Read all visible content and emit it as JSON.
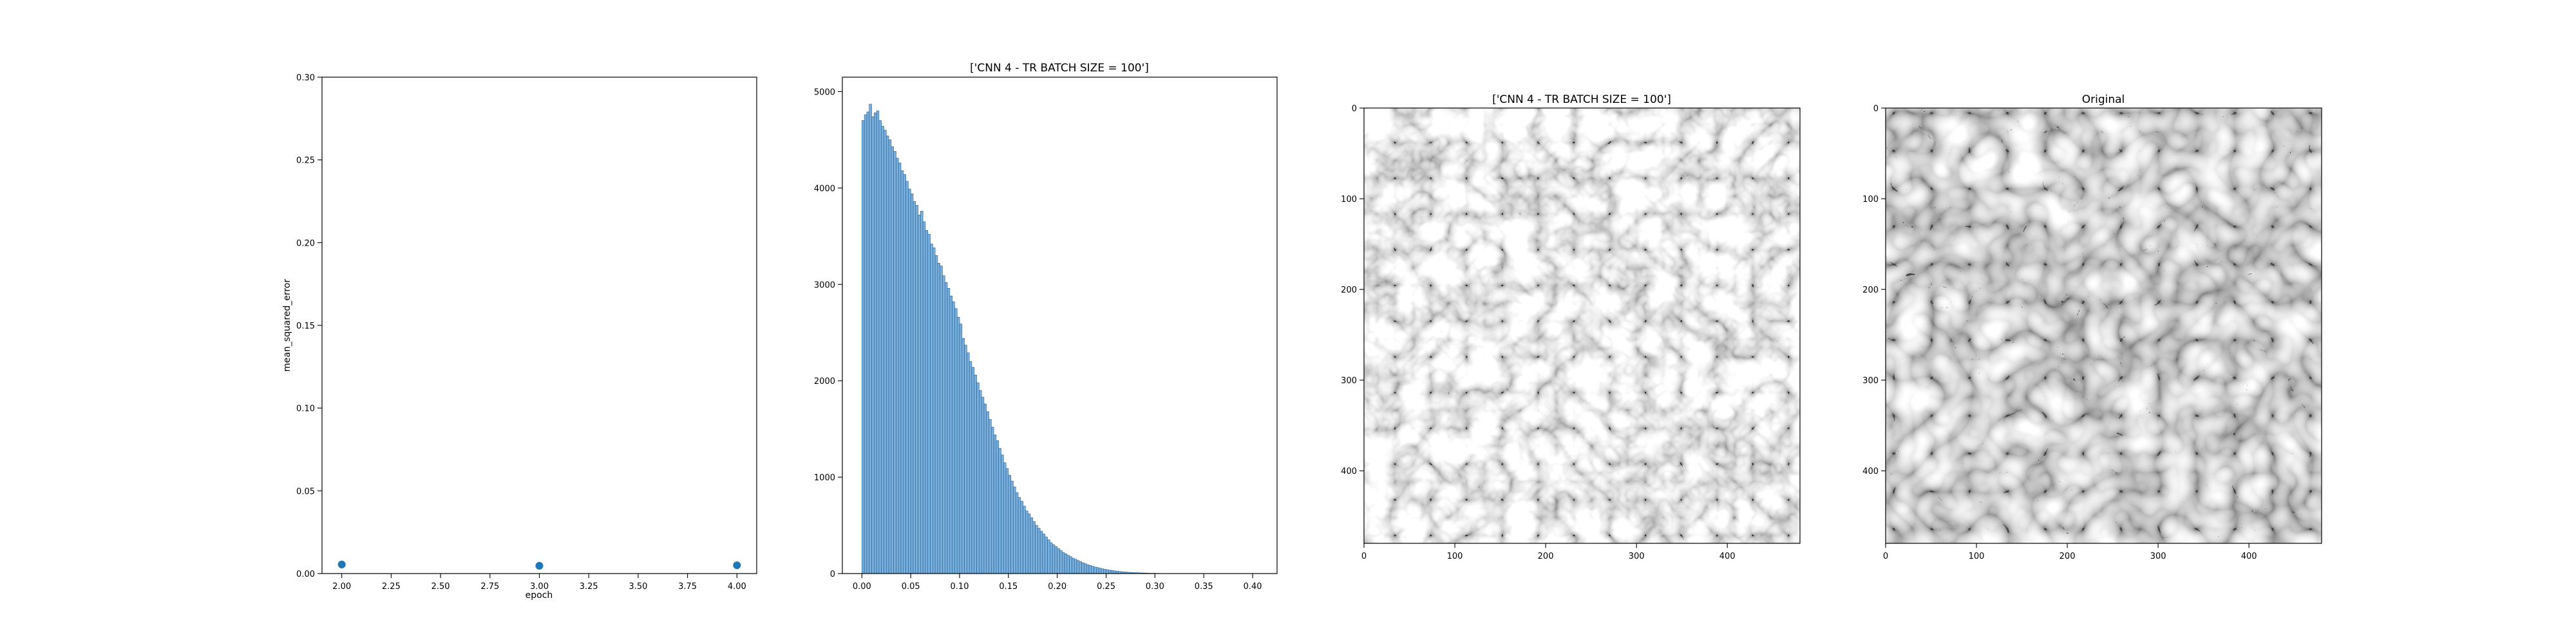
{
  "chart_data": [
    {
      "type": "scatter",
      "title": "",
      "xlabel": "epoch",
      "ylabel": "mean_squared_error",
      "xlim": [
        1.9,
        4.1
      ],
      "ylim": [
        0,
        0.3
      ],
      "xticks": [
        "2.00",
        "2.25",
        "2.50",
        "2.75",
        "3.00",
        "3.25",
        "3.50",
        "3.75",
        "4.00"
      ],
      "yticks": [
        "0.00",
        "0.05",
        "0.10",
        "0.15",
        "0.20",
        "0.25",
        "0.30"
      ],
      "color": "#1f77b4",
      "points": [
        {
          "x": 2.0,
          "y": 0.0055
        },
        {
          "x": 3.0,
          "y": 0.0047
        },
        {
          "x": 4.0,
          "y": 0.005
        }
      ]
    },
    {
      "type": "bar",
      "title": "['CNN 4 - TR BATCH SIZE = 100']",
      "xlabel": "",
      "ylabel": "",
      "xlim": [
        -0.02,
        0.425
      ],
      "ylim": [
        0,
        5150
      ],
      "xticks": [
        "0.00",
        "0.05",
        "0.10",
        "0.15",
        "0.20",
        "0.25",
        "0.30",
        "0.35",
        "0.40"
      ],
      "yticks": [
        "0",
        "1000",
        "2000",
        "3000",
        "4000",
        "5000"
      ],
      "color": "#7aaedb",
      "edge_color": "#1f5f94",
      "bin_width": 0.0025,
      "counts": [
        4700,
        4760,
        4790,
        4870,
        4740,
        4780,
        4800,
        4700,
        4640,
        4600,
        4540,
        4500,
        4430,
        4380,
        4310,
        4260,
        4180,
        4140,
        4070,
        3990,
        3940,
        3860,
        3820,
        3720,
        3760,
        3650,
        3560,
        3520,
        3420,
        3380,
        3300,
        3220,
        3190,
        3090,
        3020,
        2960,
        2880,
        2820,
        2750,
        2660,
        2590,
        2440,
        2370,
        2290,
        2200,
        2140,
        2060,
        1980,
        1900,
        1830,
        1760,
        1680,
        1600,
        1520,
        1440,
        1380,
        1300,
        1230,
        1150,
        1090,
        1020,
        960,
        900,
        840,
        790,
        750,
        700,
        650,
        620,
        580,
        540,
        500,
        470,
        440,
        410,
        380,
        350,
        320,
        300,
        280,
        260,
        240,
        220,
        205,
        190,
        175,
        160,
        148,
        136,
        124,
        112,
        102,
        92,
        84,
        76,
        68,
        62,
        56,
        50,
        45,
        40,
        36,
        32,
        28,
        25,
        22,
        19,
        17,
        15,
        13,
        11,
        10,
        9,
        8,
        7,
        6,
        5,
        4,
        3,
        3,
        2,
        2,
        1,
        1,
        1
      ]
    },
    {
      "type": "image",
      "title": "['CNN 4 - TR BATCH SIZE = 100']",
      "xlim": [
        0,
        480
      ],
      "ylim": [
        480,
        0
      ],
      "xticks": [
        "0",
        "100",
        "200",
        "300",
        "400"
      ],
      "yticks": [
        "0",
        "100",
        "200",
        "300",
        "400"
      ],
      "colormap": "gray"
    },
    {
      "type": "image",
      "title": "Original",
      "xlim": [
        0,
        480
      ],
      "ylim": [
        480,
        0
      ],
      "xticks": [
        "0",
        "100",
        "200",
        "300",
        "400"
      ],
      "yticks": [
        "0",
        "100",
        "200",
        "300",
        "400"
      ],
      "colormap": "gray"
    }
  ]
}
